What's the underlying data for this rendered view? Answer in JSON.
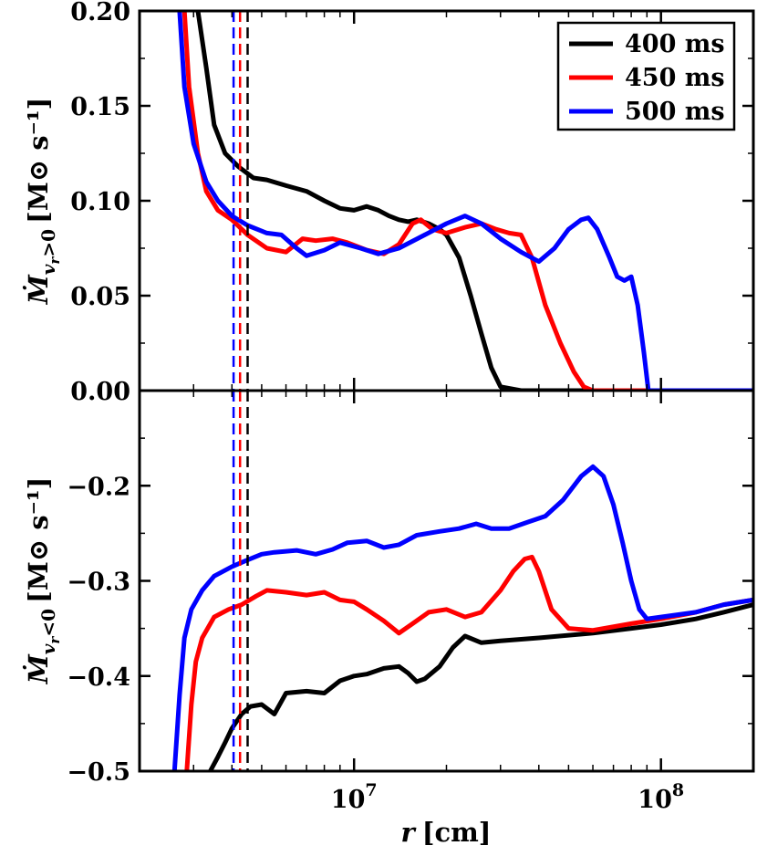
{
  "chart_data": [
    {
      "panel": "top",
      "type": "line",
      "ylabel": "Ṁ_{v_r>0} [M_⊙ s⁻¹]",
      "ylabel_parts": {
        "main": "Ṁ",
        "sub": "v",
        "subsub": "r",
        "cond": ">0",
        "units": "[M⊙ s⁻¹]"
      },
      "xscale": "log",
      "xlim": [
        2000000,
        200000000
      ],
      "ylim": [
        0.0,
        0.2
      ],
      "yticks": [
        0.0,
        0.05,
        0.1,
        0.15,
        0.2
      ],
      "ytick_labels": [
        "0.00",
        "0.05",
        "0.10",
        "0.15",
        "0.20"
      ],
      "legend": "top-right",
      "series": [
        {
          "name": "400 ms",
          "color": "#000000",
          "x": [
            3100000,
            3300000,
            3500000,
            3800000,
            4200000,
            4700000,
            5200000,
            6000000,
            7000000,
            8000000,
            9000000,
            10000000,
            11000000,
            12000000,
            13000000,
            14000000,
            15000000,
            16000000,
            17500000,
            19000000,
            20000000,
            22000000,
            24000000,
            26000000,
            28000000,
            30000000,
            35000000,
            50000000,
            100000000,
            200000000
          ],
          "y": [
            0.2,
            0.17,
            0.14,
            0.125,
            0.118,
            0.112,
            0.111,
            0.108,
            0.105,
            0.1,
            0.096,
            0.095,
            0.097,
            0.095,
            0.092,
            0.09,
            0.089,
            0.09,
            0.088,
            0.085,
            0.082,
            0.07,
            0.05,
            0.03,
            0.012,
            0.002,
            0.0,
            0.0,
            0.0,
            0.0
          ]
        },
        {
          "name": "450 ms",
          "color": "#ff0000",
          "x": [
            2800000,
            2900000,
            3100000,
            3300000,
            3600000,
            4000000,
            4500000,
            5200000,
            6000000,
            6800000,
            7500000,
            8500000,
            9500000,
            11000000,
            12500000,
            14000000,
            15500000,
            16500000,
            18000000,
            20000000,
            23000000,
            26000000,
            29000000,
            32000000,
            35000000,
            38000000,
            42000000,
            47000000,
            52000000,
            56000000,
            60000000,
            100000000,
            200000000
          ],
          "y": [
            0.2,
            0.16,
            0.125,
            0.105,
            0.095,
            0.09,
            0.082,
            0.075,
            0.073,
            0.08,
            0.079,
            0.08,
            0.078,
            0.074,
            0.072,
            0.077,
            0.088,
            0.09,
            0.085,
            0.083,
            0.086,
            0.088,
            0.085,
            0.083,
            0.082,
            0.07,
            0.045,
            0.025,
            0.01,
            0.002,
            0.0,
            0.0,
            0.0
          ]
        },
        {
          "name": "500 ms",
          "color": "#0000ff",
          "x": [
            2700000,
            2800000,
            3000000,
            3300000,
            3600000,
            4000000,
            4500000,
            5200000,
            5800000,
            6500000,
            7000000,
            8000000,
            9000000,
            10500000,
            12000000,
            14000000,
            17000000,
            20000000,
            23000000,
            26000000,
            30000000,
            35000000,
            40000000,
            45000000,
            50000000,
            55000000,
            58000000,
            62000000,
            68000000,
            72000000,
            76000000,
            80000000,
            84000000,
            88000000,
            91000000,
            100000000,
            200000000
          ],
          "y": [
            0.2,
            0.16,
            0.13,
            0.11,
            0.1,
            0.092,
            0.087,
            0.083,
            0.082,
            0.075,
            0.071,
            0.074,
            0.078,
            0.075,
            0.072,
            0.075,
            0.082,
            0.088,
            0.092,
            0.088,
            0.08,
            0.073,
            0.068,
            0.075,
            0.085,
            0.09,
            0.091,
            0.085,
            0.07,
            0.06,
            0.058,
            0.06,
            0.045,
            0.02,
            0.0,
            0.0,
            0.0
          ]
        }
      ],
      "vlines": [
        {
          "x": 4050000,
          "color": "#0000ff"
        },
        {
          "x": 4250000,
          "color": "#ff0000"
        },
        {
          "x": 4500000,
          "color": "#000000"
        }
      ]
    },
    {
      "panel": "bottom",
      "type": "line",
      "ylabel": "Ṁ_{v_r<0} [M_⊙ s⁻¹]",
      "ylabel_parts": {
        "main": "Ṁ",
        "sub": "v",
        "subsub": "r",
        "cond": "<0",
        "units": "[M⊙ s⁻¹]"
      },
      "xlabel": "r [cm]",
      "xlabel_parts": {
        "var": "r",
        "units": "[cm]"
      },
      "xscale": "log",
      "xlim": [
        2000000,
        200000000
      ],
      "ylim": [
        -0.5,
        -0.1
      ],
      "yticks": [
        -0.5,
        -0.4,
        -0.3,
        -0.2
      ],
      "ytick_labels": [
        "−0.5",
        "−0.4",
        "−0.3",
        "−0.2"
      ],
      "xticks": [
        10000000,
        100000000
      ],
      "xtick_labels": [
        {
          "base": "10",
          "exp": "7"
        },
        {
          "base": "10",
          "exp": "8"
        }
      ],
      "series": [
        {
          "name": "400 ms",
          "color": "#000000",
          "x": [
            3400000,
            3600000,
            3800000,
            4000000,
            4300000,
            4600000,
            5000000,
            5500000,
            6000000,
            7000000,
            8000000,
            9000000,
            10000000,
            11000000,
            12500000,
            14000000,
            15000000,
            16000000,
            17000000,
            19000000,
            21000000,
            23000000,
            26000000,
            30000000,
            40000000,
            60000000,
            80000000,
            100000000,
            130000000,
            160000000,
            200000000
          ],
          "y": [
            -0.5,
            -0.485,
            -0.47,
            -0.455,
            -0.44,
            -0.432,
            -0.43,
            -0.44,
            -0.418,
            -0.416,
            -0.418,
            -0.405,
            -0.4,
            -0.398,
            -0.392,
            -0.39,
            -0.397,
            -0.406,
            -0.403,
            -0.39,
            -0.37,
            -0.358,
            -0.365,
            -0.363,
            -0.36,
            -0.355,
            -0.35,
            -0.346,
            -0.34,
            -0.333,
            -0.325
          ]
        },
        {
          "name": "450 ms",
          "color": "#ff0000",
          "x": [
            2850000,
            2950000,
            3050000,
            3200000,
            3500000,
            3900000,
            4300000,
            4800000,
            5200000,
            6000000,
            7000000,
            8000000,
            9000000,
            10000000,
            11000000,
            12500000,
            14000000,
            15500000,
            17500000,
            20000000,
            23000000,
            26000000,
            30000000,
            33000000,
            36000000,
            38000000,
            40000000,
            44000000,
            50000000,
            60000000,
            80000000,
            100000000,
            130000000,
            160000000,
            200000000
          ],
          "y": [
            -0.5,
            -0.43,
            -0.385,
            -0.36,
            -0.338,
            -0.33,
            -0.325,
            -0.316,
            -0.31,
            -0.312,
            -0.315,
            -0.312,
            -0.32,
            -0.322,
            -0.33,
            -0.342,
            -0.355,
            -0.345,
            -0.333,
            -0.33,
            -0.338,
            -0.333,
            -0.31,
            -0.29,
            -0.277,
            -0.275,
            -0.29,
            -0.33,
            -0.35,
            -0.352,
            -0.345,
            -0.34,
            -0.333,
            -0.325,
            -0.32
          ]
        },
        {
          "name": "500 ms",
          "color": "#0000ff",
          "x": [
            2600000,
            2700000,
            2800000,
            2950000,
            3200000,
            3500000,
            4000000,
            4500000,
            5000000,
            5500000,
            6500000,
            7500000,
            8500000,
            9500000,
            11000000,
            12500000,
            14000000,
            16000000,
            19000000,
            22000000,
            25000000,
            28000000,
            32000000,
            37000000,
            42000000,
            48000000,
            55000000,
            60000000,
            65000000,
            70000000,
            75000000,
            80000000,
            85000000,
            90000000,
            100000000,
            130000000,
            160000000,
            200000000
          ],
          "y": [
            -0.5,
            -0.42,
            -0.36,
            -0.33,
            -0.31,
            -0.295,
            -0.285,
            -0.278,
            -0.272,
            -0.27,
            -0.268,
            -0.272,
            -0.267,
            -0.26,
            -0.258,
            -0.265,
            -0.262,
            -0.252,
            -0.248,
            -0.245,
            -0.24,
            -0.245,
            -0.245,
            -0.238,
            -0.232,
            -0.215,
            -0.19,
            -0.18,
            -0.19,
            -0.22,
            -0.26,
            -0.3,
            -0.33,
            -0.34,
            -0.338,
            -0.333,
            -0.325,
            -0.32
          ]
        }
      ],
      "vlines": [
        {
          "x": 4050000,
          "color": "#0000ff"
        },
        {
          "x": 4250000,
          "color": "#ff0000"
        },
        {
          "x": 4500000,
          "color": "#000000"
        }
      ]
    }
  ]
}
